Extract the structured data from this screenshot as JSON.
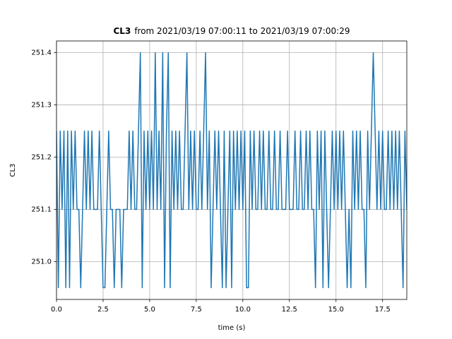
{
  "chart_data": {
    "type": "line",
    "title_bold": "CL3",
    "title": "from 2021/03/19 07:00:11 to 2021/03/19 07:00:29",
    "xlabel": "time (s)",
    "ylabel": "CL3",
    "color": "#1f77b4",
    "grid": true,
    "xlim": [
      0,
      18.8
    ],
    "ylim": [
      250.9275,
      251.4225
    ],
    "xticks": [
      {
        "value": 0,
        "label": "0.0"
      },
      2.5,
      {
        "value": 5,
        "label": "5.0"
      },
      7.5,
      {
        "value": 10,
        "label": "10.0"
      },
      12.5,
      {
        "value": 15,
        "label": "15.0"
      },
      17.5
    ],
    "yticks": [
      {
        "value": 251,
        "label": "251.0"
      },
      251.1,
      251.2,
      251.3,
      251.4
    ],
    "x": [
      0,
      0.1,
      0.2,
      0.3,
      0.4,
      0.5,
      0.6,
      0.7,
      0.8,
      0.9,
      1,
      1.1,
      1.2,
      1.3,
      1.4,
      1.5,
      1.6,
      1.7,
      1.8,
      1.9,
      2,
      2.1,
      2.2,
      2.3,
      2.4,
      2.5,
      2.6,
      2.7,
      2.8,
      2.9,
      3,
      3.1,
      3.2,
      3.3,
      3.4,
      3.5,
      3.6,
      3.7,
      3.8,
      3.9,
      4,
      4.1,
      4.2,
      4.3,
      4.4,
      4.5,
      4.6,
      4.7,
      4.8,
      4.9,
      5,
      5.1,
      5.2,
      5.3,
      5.4,
      5.5,
      5.6,
      5.7,
      5.8,
      5.9,
      6,
      6.1,
      6.2,
      6.3,
      6.4,
      6.5,
      6.6,
      6.7,
      6.8,
      6.9,
      7,
      7.1,
      7.2,
      7.3,
      7.4,
      7.5,
      7.6,
      7.7,
      7.8,
      7.9,
      8,
      8.1,
      8.2,
      8.3,
      8.4,
      8.5,
      8.6,
      8.7,
      8.8,
      8.9,
      9,
      9.1,
      9.2,
      9.3,
      9.4,
      9.5,
      9.6,
      9.7,
      9.8,
      9.9,
      10,
      10.1,
      10.2,
      10.3,
      10.4,
      10.5,
      10.6,
      10.7,
      10.8,
      10.9,
      11,
      11.1,
      11.2,
      11.3,
      11.4,
      11.5,
      11.6,
      11.7,
      11.8,
      11.9,
      12,
      12.1,
      12.2,
      12.3,
      12.4,
      12.5,
      12.6,
      12.7,
      12.8,
      12.9,
      13,
      13.1,
      13.2,
      13.3,
      13.4,
      13.5,
      13.6,
      13.7,
      13.8,
      13.9,
      14,
      14.1,
      14.2,
      14.3,
      14.4,
      14.5,
      14.6,
      14.7,
      14.8,
      14.9,
      15,
      15.1,
      15.2,
      15.3,
      15.4,
      15.5,
      15.6,
      15.7,
      15.8,
      15.9,
      16,
      16.1,
      16.2,
      16.3,
      16.4,
      16.5,
      16.6,
      16.7,
      16.8,
      16.9,
      17,
      17.1,
      17.2,
      17.3,
      17.4,
      17.5,
      17.6,
      17.7,
      17.8,
      17.9,
      18,
      18.1,
      18.2,
      18.3,
      18.4,
      18.5,
      18.6,
      18.7,
      18.8
    ],
    "values": [
      251.25,
      250.95,
      251.25,
      251.1,
      251.25,
      250.95,
      251.25,
      250.95,
      251.25,
      251.1,
      251.25,
      251.1,
      251.1,
      250.95,
      251.1,
      251.25,
      251.1,
      251.25,
      251.1,
      251.25,
      251.1,
      251.1,
      251.1,
      251.25,
      251.1,
      250.95,
      250.95,
      251.1,
      251.25,
      251.1,
      251.1,
      250.95,
      251.1,
      251.1,
      251.1,
      250.95,
      251.1,
      251.1,
      251.1,
      251.25,
      251.1,
      251.25,
      251.1,
      251.1,
      251.25,
      251.4,
      250.95,
      251.25,
      251.1,
      251.25,
      251.1,
      251.25,
      251.1,
      251.4,
      251.1,
      251.25,
      251.1,
      251.4,
      250.95,
      251.25,
      251.4,
      250.95,
      251.25,
      251.1,
      251.25,
      251.1,
      251.25,
      251.1,
      251.1,
      251.25,
      251.4,
      251.1,
      251.25,
      251.1,
      251.25,
      251.1,
      251.1,
      251.25,
      251.1,
      251.25,
      251.4,
      251.1,
      251.25,
      250.95,
      251.1,
      251.25,
      251.1,
      251.25,
      251.1,
      250.95,
      251.25,
      250.95,
      251.1,
      251.25,
      250.95,
      251.25,
      251.1,
      251.25,
      251.1,
      251.25,
      251.1,
      251.25,
      250.95,
      250.95,
      251.25,
      251.1,
      251.25,
      251.1,
      251.1,
      251.25,
      251.1,
      251.25,
      251.1,
      251.1,
      251.25,
      251.1,
      251.1,
      251.25,
      251.1,
      251.1,
      251.25,
      251.1,
      251.1,
      251.1,
      251.25,
      251.1,
      251.1,
      251.1,
      251.25,
      251.1,
      251.1,
      251.25,
      251.1,
      251.1,
      251.25,
      251.1,
      251.25,
      251.1,
      251.1,
      250.95,
      251.25,
      251.1,
      251.25,
      250.95,
      251.25,
      251.1,
      250.95,
      251.1,
      251.25,
      251.1,
      251.25,
      251.1,
      251.25,
      251.1,
      251.25,
      251.1,
      250.95,
      251.1,
      250.95,
      251.25,
      251.1,
      251.25,
      251.1,
      251.25,
      251.1,
      251.1,
      250.95,
      251.25,
      251.1,
      251.25,
      251.4,
      251.25,
      251.1,
      251.25,
      251.1,
      251.25,
      251.1,
      251.1,
      251.25,
      251.1,
      251.25,
      251.1,
      251.25,
      251.1,
      251.25,
      251.1,
      250.95,
      251.25,
      251.1
    ]
  }
}
